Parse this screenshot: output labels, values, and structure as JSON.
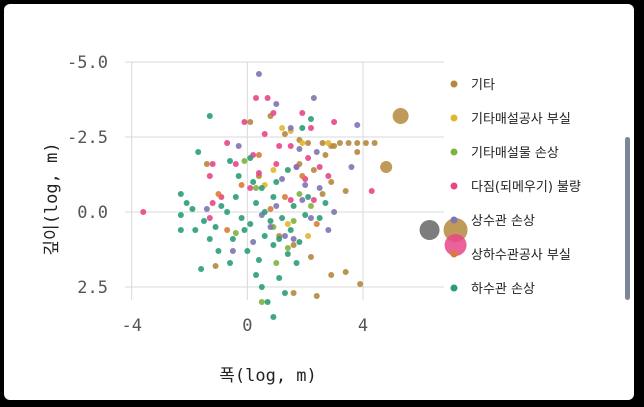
{
  "chart_data": {
    "type": "scatter",
    "xlabel": "폭(log, m)",
    "ylabel": "깊이(log, m)",
    "xlim": [
      -5.2,
      6.8
    ],
    "ylim": [
      3.6,
      -5.0
    ],
    "x_ticks": [
      {
        "value": -4,
        "label": "-4"
      },
      {
        "value": 0,
        "label": "0"
      },
      {
        "value": 4,
        "label": "4"
      }
    ],
    "y_ticks": [
      {
        "value": -5,
        "label": "-5.0"
      },
      {
        "value": -2.5,
        "label": "-2.5"
      },
      {
        "value": 0,
        "label": "0.0"
      },
      {
        "value": 2.5,
        "label": "2.5"
      }
    ],
    "grid": true,
    "legend_position": "right",
    "series": [
      {
        "name": "기타",
        "color": "#b5883e",
        "points": [
          [
            0.1,
            -3.0
          ],
          [
            0.8,
            -3.2
          ],
          [
            1.3,
            -2.6
          ],
          [
            2.1,
            -2.3
          ],
          [
            2.6,
            -2.3
          ],
          [
            2.9,
            -2.2
          ],
          [
            3.2,
            -2.3
          ],
          [
            3.5,
            -2.3
          ],
          [
            3.8,
            -2.3
          ],
          [
            4.1,
            -2.3
          ],
          [
            4.4,
            -2.3
          ],
          [
            3.0,
            -2.2
          ],
          [
            2.7,
            -1.9
          ],
          [
            1.8,
            -1.6
          ],
          [
            2.3,
            -1.4
          ],
          [
            2.9,
            -1.0
          ],
          [
            3.4,
            -0.7
          ],
          [
            3.8,
            -2.0
          ],
          [
            1.6,
            1.1
          ],
          [
            2.2,
            1.5
          ],
          [
            2.9,
            2.1
          ],
          [
            3.4,
            2.0
          ],
          [
            3.9,
            2.4
          ],
          [
            2.4,
            2.8
          ],
          [
            1.6,
            2.7
          ],
          [
            -1.1,
            1.8
          ],
          [
            -1.4,
            -1.6
          ],
          [
            0.4,
            -1.2
          ],
          [
            1.1,
            0.8
          ],
          [
            2.6,
            -0.6
          ],
          [
            1.8,
            -2.4
          ]
        ],
        "big_points": [
          [
            5.3,
            -3.2,
            8
          ],
          [
            4.8,
            -1.5,
            6
          ],
          [
            7.2,
            0.6,
            12
          ]
        ]
      },
      {
        "name": "기타매설공사 부실",
        "color": "#e3b62b",
        "points": [
          [
            1.2,
            -2.8
          ],
          [
            1.5,
            -2.7
          ],
          [
            1.9,
            -2.3
          ],
          [
            2.8,
            -2.3
          ],
          [
            0.9,
            -1.4
          ],
          [
            2.1,
            0.8
          ],
          [
            1.4,
            0.4
          ],
          [
            0.6,
            -0.9
          ]
        ]
      },
      {
        "name": "기타매설물 손상",
        "color": "#7fb33f",
        "points": [
          [
            -0.1,
            -1.7
          ],
          [
            0.3,
            -0.8
          ],
          [
            0.9,
            0.5
          ],
          [
            1.4,
            1.2
          ],
          [
            1.8,
            -0.6
          ],
          [
            2.2,
            -0.2
          ],
          [
            0.5,
            3.0
          ],
          [
            1.0,
            1.7
          ],
          [
            -0.4,
            0.7
          ],
          [
            1.6,
            0.3
          ]
        ]
      },
      {
        "name": "다짐(되메우기) 불량",
        "color": "#e84589",
        "points": [
          [
            0.3,
            -3.8
          ],
          [
            0.7,
            -3.8
          ],
          [
            0.9,
            -3.3
          ],
          [
            1.9,
            -3.3
          ],
          [
            2.2,
            -2.8
          ],
          [
            -0.1,
            -3.0
          ],
          [
            0.6,
            -2.6
          ],
          [
            1.5,
            -2.2
          ],
          [
            -0.7,
            -2.3
          ],
          [
            -0.4,
            -1.6
          ],
          [
            0.2,
            -1.9
          ],
          [
            1.7,
            -1.5
          ],
          [
            2.5,
            -1.5
          ],
          [
            3.0,
            -3.0
          ],
          [
            2.1,
            -1.8
          ],
          [
            1.0,
            -1.6
          ],
          [
            -1.2,
            -1.6
          ],
          [
            -1.3,
            -1.2
          ],
          [
            -0.9,
            -0.5
          ],
          [
            -1.2,
            -0.3
          ],
          [
            2.8,
            -1.2
          ],
          [
            -3.6,
            0.0
          ],
          [
            -1.3,
            0.2
          ],
          [
            2.0,
            -1.1
          ],
          [
            1.1,
            -2.2
          ],
          [
            0.4,
            -1.3
          ],
          [
            4.3,
            -0.7
          ],
          [
            2.3,
            -0.4
          ],
          [
            0.1,
            -0.8
          ],
          [
            1.5,
            -0.4
          ]
        ],
        "big_points": [
          [
            7.2,
            1.1,
            11
          ]
        ]
      },
      {
        "name": "상수관 손상",
        "color": "#8074b3",
        "points": [
          [
            0.4,
            -4.6
          ],
          [
            1.0,
            -3.6
          ],
          [
            2.3,
            -3.8
          ],
          [
            1.5,
            -2.8
          ],
          [
            1.8,
            -2.1
          ],
          [
            2.4,
            -2.0
          ],
          [
            -0.3,
            -2.2
          ],
          [
            1.2,
            -1.1
          ],
          [
            1.9,
            -0.4
          ],
          [
            2.2,
            0.2
          ],
          [
            1.6,
            0.9
          ],
          [
            3.0,
            0.0
          ],
          [
            1.3,
            0.8
          ],
          [
            0.5,
            0.1
          ],
          [
            1.0,
            -0.2
          ],
          [
            0.2,
            1.0
          ],
          [
            3.6,
            -1.5
          ],
          [
            -0.5,
            1.3
          ],
          [
            2.0,
            -0.9
          ],
          [
            0.8,
            0.5
          ],
          [
            2.5,
            -0.8
          ],
          [
            1.7,
            -1.5
          ],
          [
            2.8,
            0.6
          ],
          [
            3.8,
            -2.9
          ],
          [
            -1.4,
            -0.1
          ]
        ]
      },
      {
        "name": "상하수관공사 부실",
        "color": "#d97b38",
        "points": [
          [
            0.4,
            -1.9
          ],
          [
            -0.2,
            -0.9
          ],
          [
            1.3,
            -0.5
          ],
          [
            -0.7,
            0.6
          ],
          [
            1.9,
            -1.2
          ],
          [
            0.8,
            -0.1
          ],
          [
            -1.0,
            -0.6
          ],
          [
            2.4,
            0.4
          ]
        ]
      },
      {
        "name": "하수관 손상",
        "color": "#2a9d78",
        "points": [
          [
            -1.3,
            -3.2
          ],
          [
            -1.7,
            -2.0
          ],
          [
            -0.6,
            -1.7
          ],
          [
            0.1,
            -1.8
          ],
          [
            1.4,
            -1.4
          ],
          [
            -2.3,
            -0.6
          ],
          [
            -1.9,
            -0.1
          ],
          [
            -2.3,
            0.1
          ],
          [
            -2.3,
            0.6
          ],
          [
            -1.8,
            0.6
          ],
          [
            -1.3,
            0.9
          ],
          [
            -1.0,
            1.3
          ],
          [
            -0.6,
            1.7
          ],
          [
            -0.2,
            0.2
          ],
          [
            0.1,
            0.4
          ],
          [
            0.3,
            -0.3
          ],
          [
            0.6,
            0.8
          ],
          [
            0.9,
            1.1
          ],
          [
            1.2,
            0.2
          ],
          [
            1.5,
            0.6
          ],
          [
            1.8,
            1.0
          ],
          [
            2.0,
            0.1
          ],
          [
            2.5,
            0.2
          ],
          [
            -0.7,
            0.0
          ],
          [
            -0.4,
            -0.5
          ],
          [
            0.5,
            -0.8
          ],
          [
            1.0,
            -1.0
          ],
          [
            0.8,
            0.3
          ],
          [
            1.6,
            -0.2
          ],
          [
            2.1,
            -0.5
          ],
          [
            -1.5,
            0.3
          ],
          [
            0.0,
            1.3
          ],
          [
            0.3,
            2.1
          ],
          [
            1.1,
            2.2
          ],
          [
            0.7,
            3.0
          ],
          [
            1.3,
            2.7
          ],
          [
            0.9,
            3.5
          ],
          [
            -0.1,
            0.6
          ],
          [
            -1.6,
            1.9
          ],
          [
            1.9,
            -2.8
          ],
          [
            2.2,
            -3.1
          ],
          [
            -0.9,
            -0.2
          ],
          [
            -1.1,
            0.5
          ],
          [
            0.4,
            1.6
          ],
          [
            1.7,
            1.7
          ],
          [
            0.2,
            -1.0
          ],
          [
            1.4,
            1.4
          ],
          [
            -0.3,
            -1.2
          ],
          [
            0.6,
            0.0
          ],
          [
            1.1,
            0.9
          ],
          [
            -2.1,
            -0.3
          ],
          [
            2.7,
            -0.3
          ],
          [
            0.5,
            2.5
          ],
          [
            -0.5,
            0.9
          ],
          [
            0.9,
            -0.5
          ]
        ]
      }
    ],
    "gray_big_point": {
      "x": 6.3,
      "y": 0.6,
      "r": 10,
      "color": "#6f6f6f"
    }
  }
}
